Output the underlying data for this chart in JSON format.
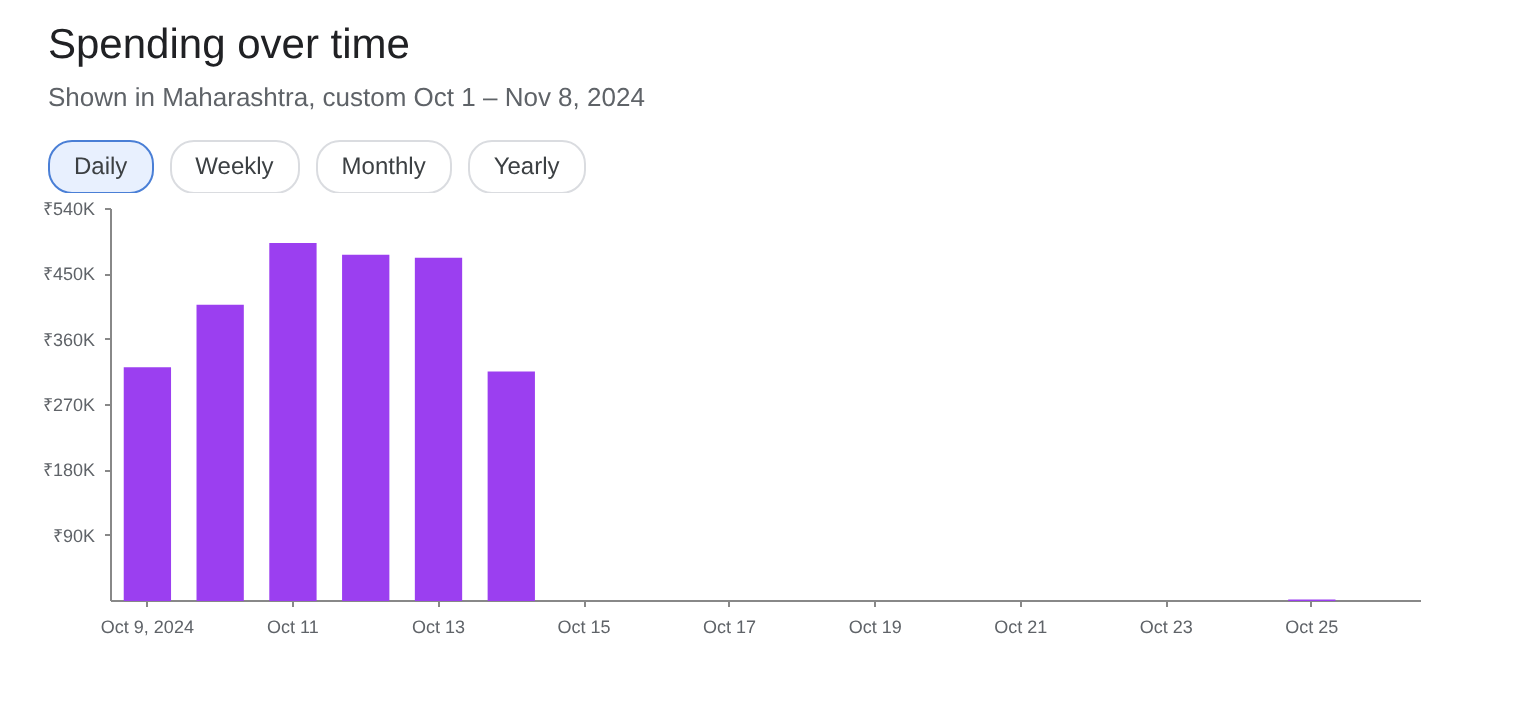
{
  "chart_data": {
    "type": "bar",
    "title": "Spending over time",
    "subtitle": "Shown in Maharashtra, custom Oct 1 – Nov 8, 2024",
    "annotations": [
      "Daily",
      "Weekly",
      "Monthly",
      "Yearly"
    ],
    "categories": [
      "Oct 9, 2024",
      null,
      "Oct 11",
      null,
      "Oct 13",
      null,
      "Oct 15",
      null,
      "Oct 17",
      null,
      "Oct 19",
      null,
      "Oct 21",
      null,
      "Oct 23",
      null,
      "Oct 25",
      null
    ],
    "values": [
      322000,
      408000,
      493000,
      477000,
      473000,
      316000,
      0,
      0,
      0,
      0,
      0,
      0,
      0,
      0,
      0,
      0,
      2000,
      0
    ],
    "color": "#9b3ff0",
    "ylim": [
      0,
      540000
    ],
    "yticks": [
      {
        "value": 90000,
        "label": "₹90K"
      },
      {
        "value": 180000,
        "label": "₹180K"
      },
      {
        "value": 270000,
        "label": "₹270K"
      },
      {
        "value": 360000,
        "label": "₹360K"
      },
      {
        "value": 450000,
        "label": "₹450K"
      },
      {
        "value": 540000,
        "label": "₹540K"
      }
    ],
    "grid": false
  }
}
